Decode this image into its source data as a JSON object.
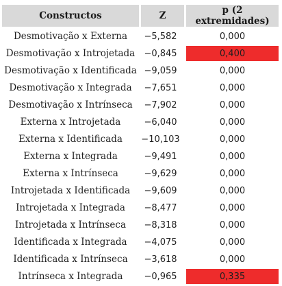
{
  "table": {
    "headers": [
      "Constructos",
      "Z",
      "p (2 extremidades)"
    ],
    "highlight_color": "#ee2c2c",
    "rows": [
      {
        "label": "Desmotivação x Externa",
        "z": "−5,582",
        "p": "0,000",
        "highlight": false
      },
      {
        "label": "Desmotivação x Introjetada",
        "z": "−0,845",
        "p": "0,400",
        "highlight": true
      },
      {
        "label": "Desmotivação x Identificada",
        "z": "−9,059",
        "p": "0,000",
        "highlight": false
      },
      {
        "label": "Desmotivação x Integrada",
        "z": "−7,651",
        "p": "0,000",
        "highlight": false
      },
      {
        "label": "Desmotivação x Intrínseca",
        "z": "−7,902",
        "p": "0,000",
        "highlight": false
      },
      {
        "label": "Externa x Introjetada",
        "z": "−6,040",
        "p": "0,000",
        "highlight": false
      },
      {
        "label": "Externa x Identificada",
        "z": "−10,103",
        "p": "0,000",
        "highlight": false
      },
      {
        "label": "Externa x Integrada",
        "z": "−9,491",
        "p": "0,000",
        "highlight": false
      },
      {
        "label": "Externa x Intrínseca",
        "z": "−9,629",
        "p": "0,000",
        "highlight": false
      },
      {
        "label": "Introjetada x Identificada",
        "z": "−9,609",
        "p": "0,000",
        "highlight": false
      },
      {
        "label": "Introjetada x Integrada",
        "z": "−8,477",
        "p": "0,000",
        "highlight": false
      },
      {
        "label": "Introjetada x Intrínseca",
        "z": "−8,318",
        "p": "0,000",
        "highlight": false
      },
      {
        "label": "Identificada x Integrada",
        "z": "−4,075",
        "p": "0,000",
        "highlight": false
      },
      {
        "label": "Identificada x Intrínseca",
        "z": "−3,618",
        "p": "0,000",
        "highlight": false
      },
      {
        "label": "Intrínseca x Integrada",
        "z": "−0,965",
        "p": "0,335",
        "highlight": true
      }
    ]
  }
}
